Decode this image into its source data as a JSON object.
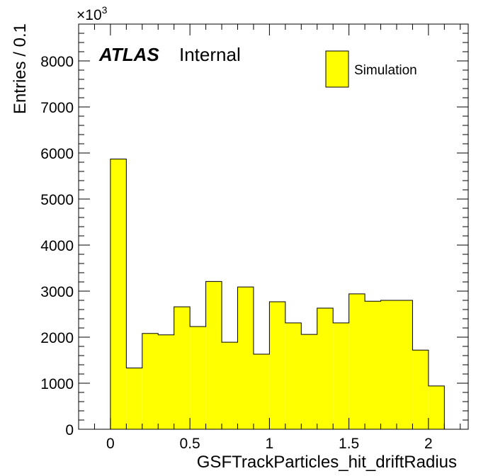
{
  "chart_data": {
    "type": "bar",
    "x_label": "GSFTrackParticles_hit_driftRadius",
    "y_label": "Entries / 0.1",
    "y_multiplier_base": "×10",
    "y_multiplier_exp": "3",
    "atlas_label": "ATLAS",
    "atlas_sublabel": "Internal",
    "x_range": [
      -0.2,
      2.25
    ],
    "y_range": [
      0,
      8800
    ],
    "x_ticks": [
      {
        "value": 0,
        "label": "0"
      },
      {
        "value": 0.5,
        "label": "0.5"
      },
      {
        "value": 1,
        "label": "1"
      },
      {
        "value": 1.5,
        "label": "1.5"
      },
      {
        "value": 2,
        "label": "2"
      }
    ],
    "y_ticks": [
      {
        "value": 0,
        "label": "0"
      },
      {
        "value": 1000,
        "label": "1000"
      },
      {
        "value": 2000,
        "label": "2000"
      },
      {
        "value": 3000,
        "label": "3000"
      },
      {
        "value": 4000,
        "label": "4000"
      },
      {
        "value": 5000,
        "label": "5000"
      },
      {
        "value": 6000,
        "label": "6000"
      },
      {
        "value": 7000,
        "label": "7000"
      },
      {
        "value": 8000,
        "label": "8000"
      }
    ],
    "bin_edges": [
      0,
      0.1,
      0.2,
      0.3,
      0.4,
      0.5,
      0.6,
      0.7,
      0.8,
      0.9,
      1.0,
      1.1,
      1.2,
      1.3,
      1.4,
      1.5,
      1.6,
      1.7,
      1.8,
      1.9,
      2.0,
      2.1
    ],
    "series": [
      {
        "name": "Simulation",
        "color": "#ffff00",
        "values": [
          5870,
          1330,
          2080,
          2050,
          2660,
          2230,
          3210,
          1890,
          3090,
          1630,
          2770,
          2310,
          2060,
          2630,
          2310,
          2940,
          2780,
          2800,
          2800,
          1720,
          940
        ]
      }
    ],
    "legend_position": "top-right",
    "grid": false
  }
}
